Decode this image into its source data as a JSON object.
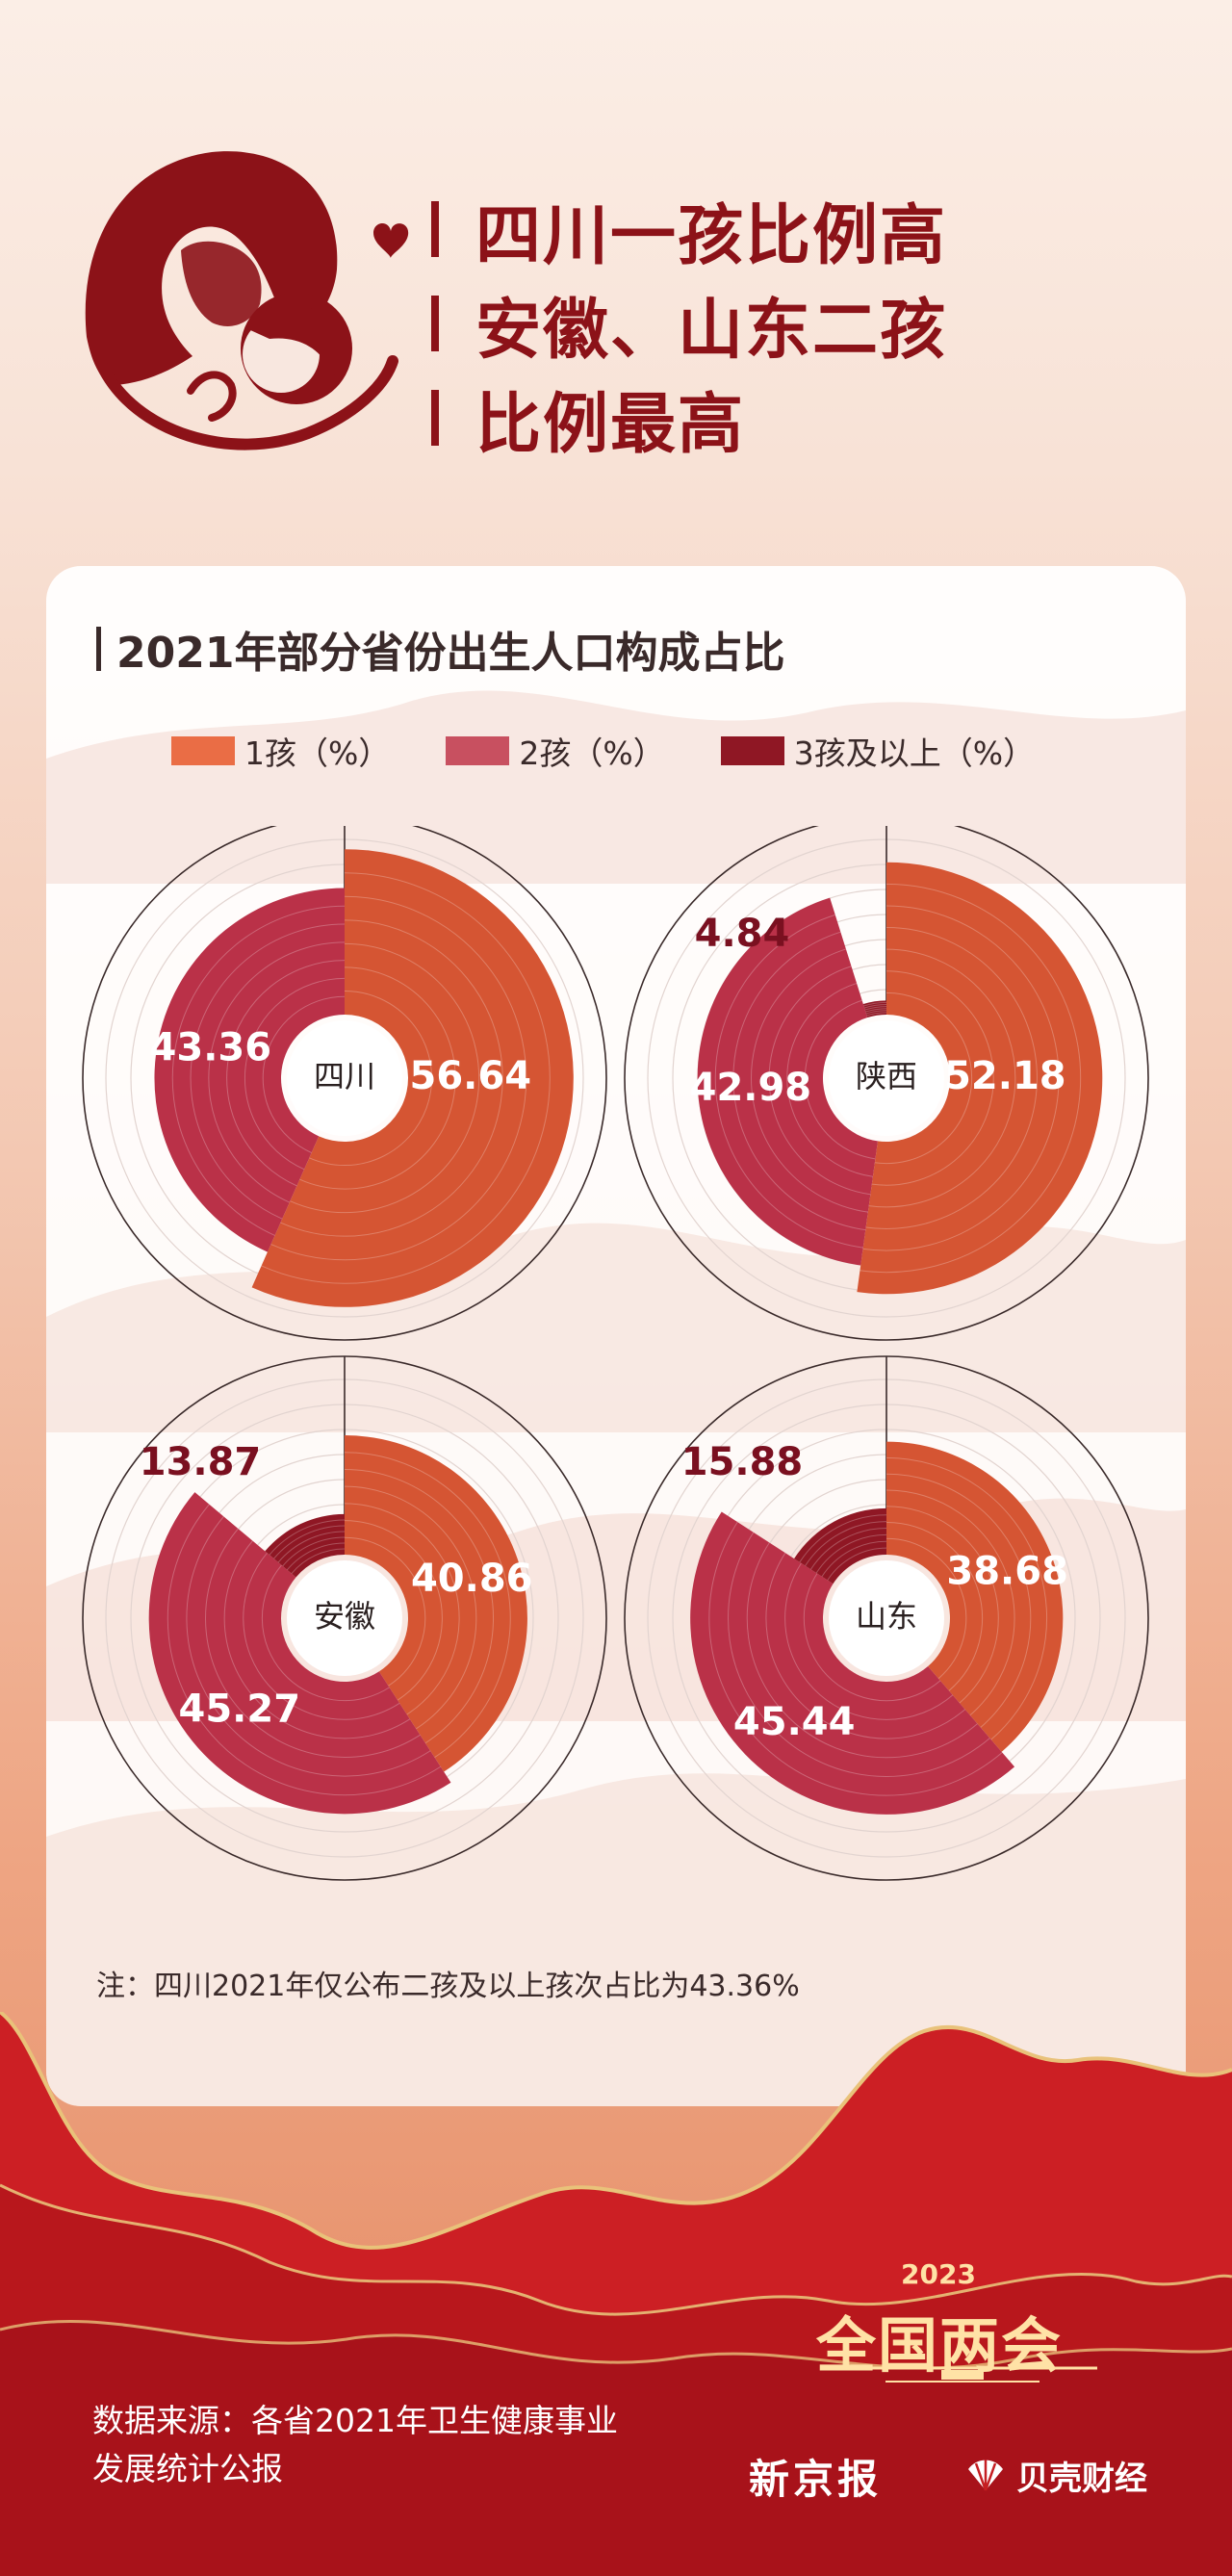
{
  "headline": {
    "lines": [
      "四川一孩比例高",
      "安徽、山东二孩",
      "比例最高"
    ]
  },
  "hero_icon": "mother-and-child-icon",
  "colors": {
    "one_child": "#d55533",
    "two_children": "#ba3148",
    "three_plus": "#8f1724",
    "headline": "#8c1218"
  },
  "chart_data": {
    "type": "radial-bar",
    "title": "2021年部分省份出生人口构成占比",
    "legend": [
      "1孩（%）",
      "2孩（%）",
      "3孩及以上（%）"
    ],
    "legend_position": "top",
    "panels": [
      {
        "province": "四川",
        "values": {
          "1孩": 56.64,
          "2孩": 43.36
        },
        "labels": [
          "56.64",
          "43.36"
        ]
      },
      {
        "province": "陕西",
        "values": {
          "1孩": 52.18,
          "2孩": 42.98,
          "3孩及以上": 4.84
        },
        "labels": [
          "52.18",
          "42.98",
          "4.84"
        ]
      },
      {
        "province": "安徽",
        "values": {
          "1孩": 40.86,
          "2孩": 45.27,
          "3孩及以上": 13.87
        },
        "labels": [
          "40.86",
          "45.27",
          "13.87"
        ]
      },
      {
        "province": "山东",
        "values": {
          "1孩": 38.68,
          "2孩": 45.44,
          "3孩及以上": 15.88
        },
        "labels": [
          "38.68",
          "45.44",
          "15.88"
        ]
      }
    ],
    "note": "注：四川2021年仅公布二孩及以上孩次占比为43.36%"
  },
  "footer": {
    "source_lines": [
      "数据来源：各省2021年卫生健康事业",
      "发展统计公报"
    ],
    "event_year": "2023",
    "event_name": "全国两会",
    "brand_1": "新京报",
    "brand_2": "贝壳财经"
  }
}
